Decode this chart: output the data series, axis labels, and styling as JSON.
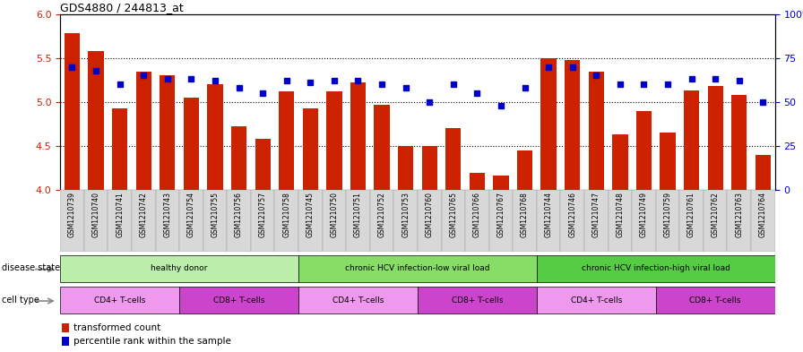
{
  "title": "GDS4880 / 244813_at",
  "samples": [
    "GSM1210739",
    "GSM1210740",
    "GSM1210741",
    "GSM1210742",
    "GSM1210743",
    "GSM1210754",
    "GSM1210755",
    "GSM1210756",
    "GSM1210757",
    "GSM1210758",
    "GSM1210745",
    "GSM1210750",
    "GSM1210751",
    "GSM1210752",
    "GSM1210753",
    "GSM1210760",
    "GSM1210765",
    "GSM1210766",
    "GSM1210767",
    "GSM1210768",
    "GSM1210744",
    "GSM1210746",
    "GSM1210747",
    "GSM1210748",
    "GSM1210749",
    "GSM1210759",
    "GSM1210761",
    "GSM1210762",
    "GSM1210763",
    "GSM1210764"
  ],
  "bar_values": [
    5.78,
    5.58,
    4.93,
    5.35,
    5.3,
    5.05,
    5.2,
    4.72,
    4.58,
    5.12,
    4.93,
    5.12,
    5.22,
    4.97,
    4.5,
    4.5,
    4.7,
    4.2,
    4.17,
    4.45,
    5.5,
    5.48,
    5.35,
    4.63,
    4.9,
    4.65,
    5.13,
    5.18,
    5.08,
    4.4
  ],
  "percentile_values": [
    70,
    68,
    60,
    65,
    63,
    63,
    62,
    58,
    55,
    62,
    61,
    62,
    62,
    60,
    58,
    50,
    60,
    55,
    48,
    58,
    70,
    70,
    65,
    60,
    60,
    60,
    63,
    63,
    62,
    50
  ],
  "ylim_left": [
    4.0,
    6.0
  ],
  "ylim_right": [
    0,
    100
  ],
  "bar_color": "#CC2200",
  "marker_color": "#0000CC",
  "disease_state_groups": [
    {
      "label": "healthy donor",
      "start": 0,
      "end": 9,
      "color": "#AAEAAA"
    },
    {
      "label": "chronic HCV infection-low viral load",
      "start": 10,
      "end": 19,
      "color": "#66DD66"
    },
    {
      "label": "chronic HCV infection-high viral load",
      "start": 20,
      "end": 29,
      "color": "#44CC44"
    }
  ],
  "cell_type_groups": [
    {
      "label": "CD4+ T-cells",
      "start": 0,
      "end": 4,
      "color": "#EE88EE"
    },
    {
      "label": "CD8+ T-cells",
      "start": 5,
      "end": 9,
      "color": "#CC44CC"
    },
    {
      "label": "CD4+ T-cells",
      "start": 10,
      "end": 14,
      "color": "#EE88EE"
    },
    {
      "label": "CD8+ T-cells",
      "start": 15,
      "end": 19,
      "color": "#CC44CC"
    },
    {
      "label": "CD4+ T-cells",
      "start": 20,
      "end": 24,
      "color": "#EE88EE"
    },
    {
      "label": "CD8+ T-cells",
      "start": 25,
      "end": 29,
      "color": "#CC44CC"
    }
  ],
  "yticks_left": [
    4.0,
    4.5,
    5.0,
    5.5,
    6.0
  ],
  "yticks_right": [
    0,
    25,
    50,
    75,
    100
  ],
  "grid_color": "#000000",
  "label_disease": "disease state",
  "label_cell": "cell type",
  "legend_bar": "transformed count",
  "legend_marker": "percentile rank within the sample"
}
